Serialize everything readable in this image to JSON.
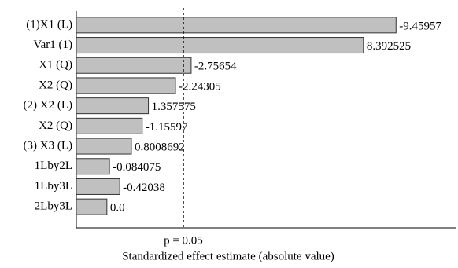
{
  "chart_data": {
    "type": "bar",
    "orientation": "horizontal",
    "x_label": "Standardized effect estimate (absolute value)",
    "categories": [
      "(1)X1 (L)",
      "Var1 (1)",
      "X1 (Q)",
      "X2 (Q)",
      "(2) X2 (L)",
      "X2 (Q)",
      "(3) X3 (L)",
      "1Lby2L",
      "1Lby3L",
      "2Lby3L"
    ],
    "values": [
      -9.45957,
      8.392525,
      -2.75654,
      -2.24305,
      1.357575,
      -1.15597,
      0.8008692,
      -0.084075,
      -0.42038,
      0.0
    ],
    "value_labels": [
      "-9.45957",
      "8.392525",
      "-2.75654",
      "-2.24305",
      "1.357575",
      "-1.15597",
      "0.8008692",
      "-0.084075",
      "-0.42038",
      "0.0"
    ],
    "color": "#c0c0c0",
    "xlim": [
      -1,
      11.1
    ],
    "reference_line": {
      "value": 2.5,
      "label": "p = 0.05"
    }
  }
}
